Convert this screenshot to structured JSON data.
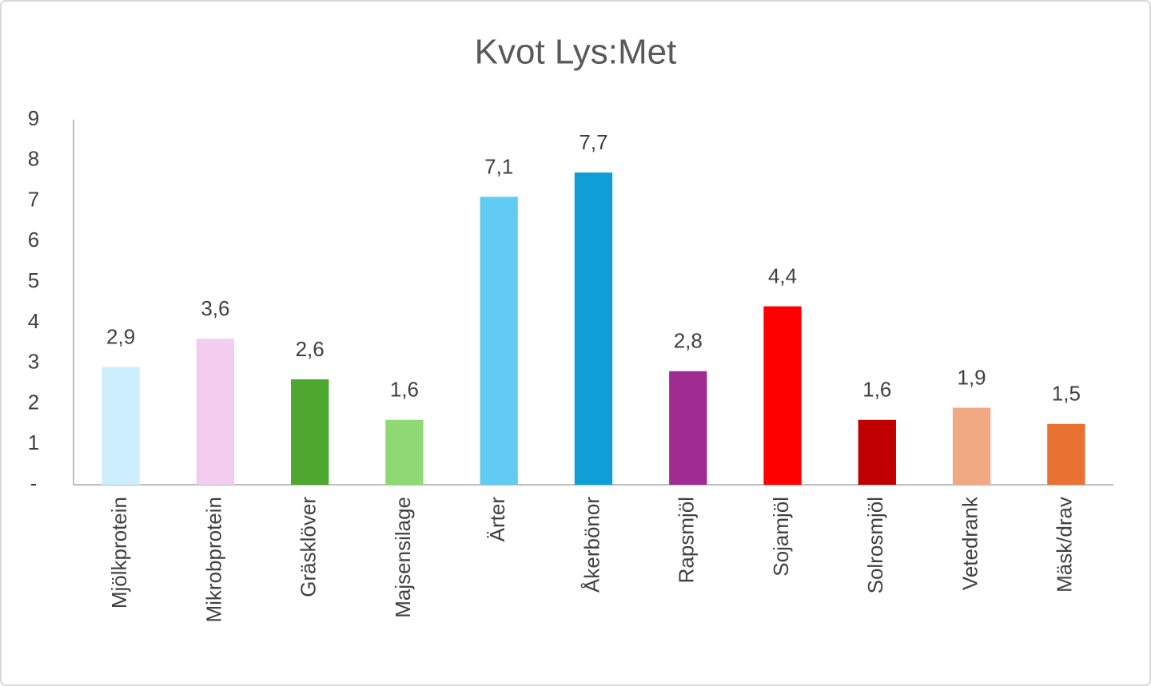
{
  "chart_data": {
    "type": "bar",
    "title": "Kvot Lys:Met",
    "categories": [
      "Mjölkprotein",
      "Mikrobprotein",
      "Gräsklöver",
      "Majsensilage",
      "Ärter",
      "Åkerbönor",
      "Rapsmjöl",
      "Sojamjöl",
      "Solrosmjöl",
      "Vetedrank",
      "Mäsk/drav"
    ],
    "values": [
      2.9,
      3.6,
      2.6,
      1.6,
      7.1,
      7.7,
      2.8,
      4.4,
      1.6,
      1.9,
      1.5
    ],
    "value_labels": [
      "2,9",
      "3,6",
      "2,6",
      "1,6",
      "7,1",
      "7,7",
      "2,8",
      "4,4",
      "1,6",
      "1,9",
      "1,5"
    ],
    "colors": [
      "#cdeefc",
      "#f2cdef",
      "#4ea72e",
      "#8ed973",
      "#61cbf4",
      "#0f9ed5",
      "#a02b93",
      "#ff0000",
      "#c00000",
      "#f1a983",
      "#e97132"
    ],
    "ylim": [
      0,
      9
    ],
    "yticks": [
      {
        "value": 0,
        "label": "-"
      },
      1,
      2,
      3,
      4,
      5,
      6,
      7,
      8,
      9
    ],
    "grid": false
  }
}
